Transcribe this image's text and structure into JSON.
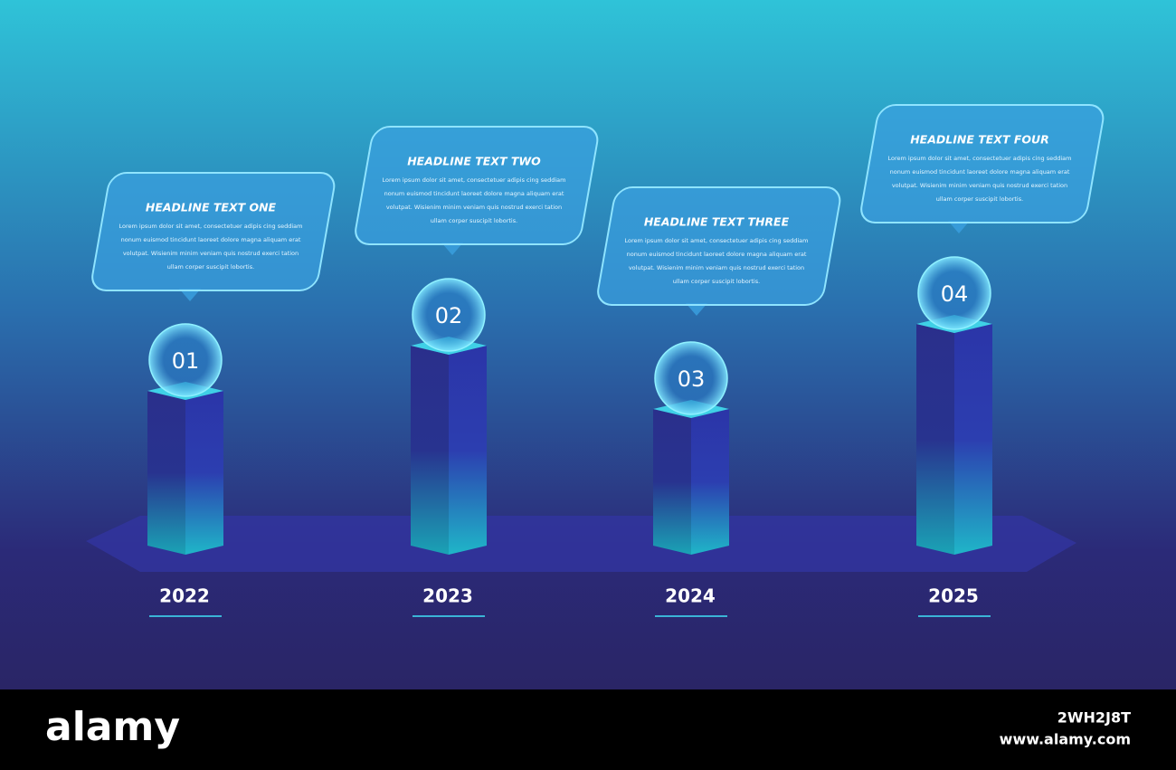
{
  "steps": [
    {
      "number": "01",
      "year": "2022",
      "headline": "HEADLINE TEXT ONE",
      "body": [
        "Lorem ipsum dolor sit amet, consectetuer adipis cing seddiam",
        "nonum euismod tincidunt laoreet dolore magna aliquam erat",
        "volutpat. Wisienim minim veniam quis nostrud exerci tation",
        "ullam corper suscipit lobortis."
      ]
    },
    {
      "number": "02",
      "year": "2023",
      "headline": "HEADLINE TEXT TWO",
      "body": [
        "Lorem ipsum dolor sit amet, consectetuer adipis cing seddiam",
        "nonum euismod tincidunt laoreet dolore magna aliquam erat",
        "volutpat. Wisienim minim veniam quis nostrud exerci tation",
        "ullam corper suscipit lobortis."
      ]
    },
    {
      "number": "03",
      "year": "2024",
      "headline": "HEADLINE TEXT THREE",
      "body": [
        "Lorem ipsum dolor sit amet, consectetuer adipis cing seddiam",
        "nonum euismod tincidunt laoreet dolore magna aliquam erat",
        "volutpat. Wisienim minim veniam quis nostrud exerci tation",
        "ullam corper suscipit lobortis."
      ]
    },
    {
      "number": "04",
      "year": "2025",
      "headline": "HEADLINE TEXT FOUR",
      "body": [
        "Lorem ipsum dolor sit amet, consectetuer adipis cing seddiam",
        "nonum euismod tincidunt laoreet dolore magna aliquam erat",
        "volutpat. Wisienim minim veniam quis nostrud exerci tation",
        "ullam corper suscipit lobortis."
      ]
    }
  ],
  "watermark": {
    "logo": "alamy",
    "image_id": "2WH2J8T",
    "url": "www.alamy.com"
  }
}
